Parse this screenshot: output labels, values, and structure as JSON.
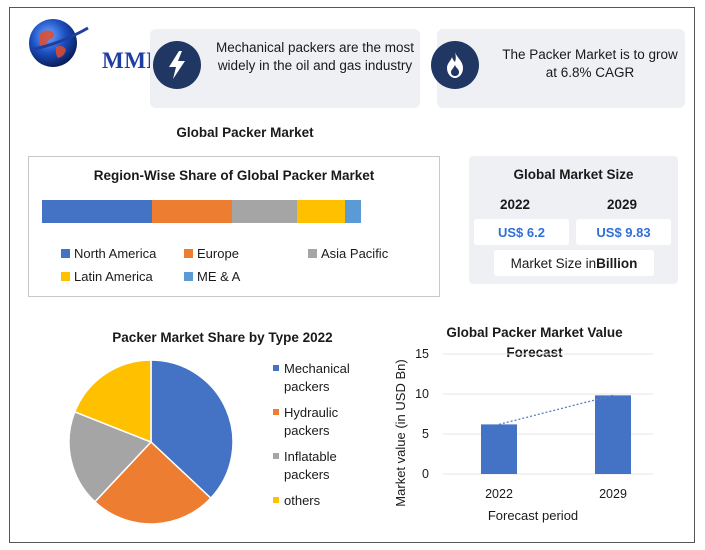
{
  "brand": {
    "logo_text": "MMR"
  },
  "facts": [
    {
      "icon": "lightning-bolt-icon",
      "text": "Mechanical packers are the most widely in the oil and gas industry"
    },
    {
      "icon": "flame-icon",
      "text": "The Packer Market is to grow at 6.8% CAGR"
    }
  ],
  "main_title": "Global Packer Market",
  "colors": {
    "north_america": "#4472c4",
    "europe": "#ed7d31",
    "asia_pacific": "#a5a5a5",
    "latin_america": "#ffc000",
    "me_a": "#5b9bd5",
    "dark_blue": "#203763",
    "value_blue": "#2f6fd6"
  },
  "market_size": {
    "title": "Global Market Size",
    "years": [
      "2022",
      "2029"
    ],
    "values": [
      "US$ 6.2",
      "US$ 9.83"
    ],
    "note_prefix": "Market Size in ",
    "note_unit": "Billion"
  },
  "chart_data": [
    {
      "type": "bar",
      "orientation": "horizontal-stacked",
      "title": "Region-Wise Share of Global Packer Market",
      "categories": [
        "North America",
        "Europe",
        "Asia Pacific",
        "Latin America",
        "ME & A"
      ],
      "values": [
        34,
        25,
        20,
        15,
        5
      ],
      "unit": "share",
      "legend_position": "bottom"
    },
    {
      "type": "pie",
      "title": "Packer Market Share by Type 2022",
      "categories": [
        "Mechanical packers",
        "Hydraulic packers",
        "Inflatable packers",
        "others"
      ],
      "values": [
        37,
        25,
        19,
        19
      ],
      "colors": [
        "#4472c4",
        "#ed7d31",
        "#a5a5a5",
        "#ffc000"
      ],
      "legend_position": "right"
    },
    {
      "type": "bar",
      "title": "Global Packer Market Value Forecast",
      "categories": [
        "2022",
        "2029"
      ],
      "values": [
        6.2,
        9.83
      ],
      "xlabel": "Forecast period",
      "ylabel": "Market value (in USD Bn)",
      "ylim": [
        0,
        15
      ],
      "yticks": [
        "0",
        "5",
        "10",
        "15"
      ],
      "trendline": true,
      "color": "#4472c4"
    }
  ]
}
